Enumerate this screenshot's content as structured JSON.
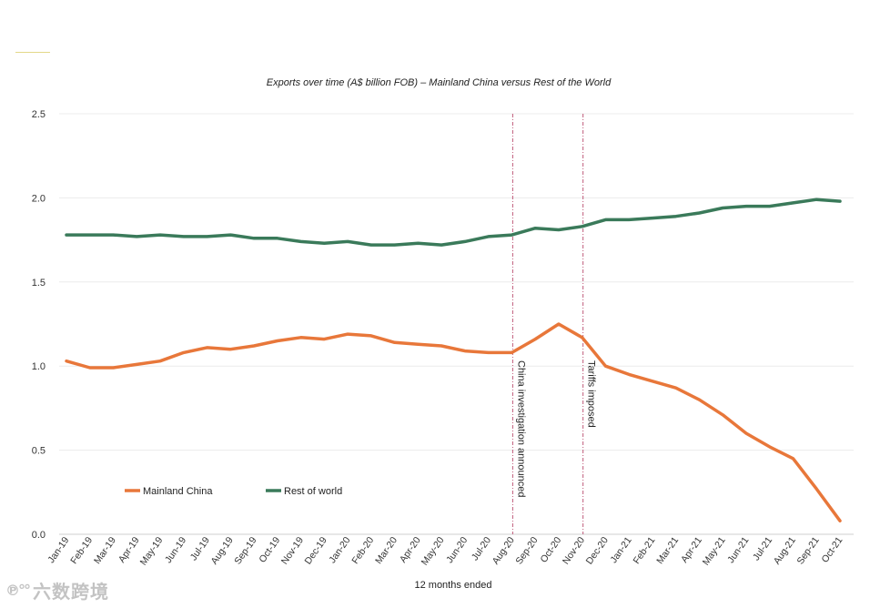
{
  "chart_data": {
    "type": "line",
    "title": "Exports over time (A$ billion FOB) – Mainland China versus Rest of the World",
    "xlabel": "12 months ended",
    "ylabel": "",
    "ylim": [
      0,
      2.5
    ],
    "yticks": [
      "0.0",
      "0.5",
      "1.0",
      "1.5",
      "2.0",
      "2.5"
    ],
    "ytick_values": [
      0,
      0.5,
      1.0,
      1.5,
      2.0,
      2.5
    ],
    "categories": [
      "Jan-19",
      "Feb-19",
      "Mar-19",
      "Apr-19",
      "May-19",
      "Jun-19",
      "Jul-19",
      "Aug-19",
      "Sep-19",
      "Oct-19",
      "Nov-19",
      "Dec-19",
      "Jan-20",
      "Feb-20",
      "Mar-20",
      "Apr-20",
      "May-20",
      "Jun-20",
      "Jul-20",
      "Aug-20",
      "Sep-20",
      "Oct-20",
      "Nov-20",
      "Dec-20",
      "Jan-21",
      "Feb-21",
      "Mar-21",
      "Apr-21",
      "May-21",
      "Jun-21",
      "Jul-21",
      "Aug-21",
      "Sep-21",
      "Oct-21"
    ],
    "series": [
      {
        "name": "Mainland China",
        "color": "#e8773a",
        "values": [
          1.03,
          0.99,
          0.99,
          1.01,
          1.03,
          1.08,
          1.11,
          1.1,
          1.12,
          1.15,
          1.17,
          1.16,
          1.19,
          1.18,
          1.14,
          1.13,
          1.12,
          1.09,
          1.08,
          1.08,
          1.16,
          1.25,
          1.17,
          1.0,
          0.95,
          0.91,
          0.87,
          0.8,
          0.71,
          0.6,
          0.52,
          0.45,
          0.27,
          0.08
        ]
      },
      {
        "name": "Rest of world",
        "color": "#3a7a5a",
        "values": [
          1.78,
          1.78,
          1.78,
          1.77,
          1.78,
          1.77,
          1.77,
          1.78,
          1.76,
          1.76,
          1.74,
          1.73,
          1.74,
          1.72,
          1.72,
          1.73,
          1.72,
          1.74,
          1.77,
          1.78,
          1.82,
          1.81,
          1.83,
          1.87,
          1.87,
          1.88,
          1.89,
          1.91,
          1.94,
          1.95,
          1.95,
          1.97,
          1.99,
          1.98
        ]
      }
    ],
    "annotations": [
      {
        "label": "China investigation announced",
        "at_index": 19
      },
      {
        "label": "Tariffs imposed",
        "at_index": 22
      }
    ],
    "legend_position": "bottom-left",
    "grid": true
  },
  "watermark": {
    "logo": "℗°°",
    "text": "六数跨境"
  }
}
